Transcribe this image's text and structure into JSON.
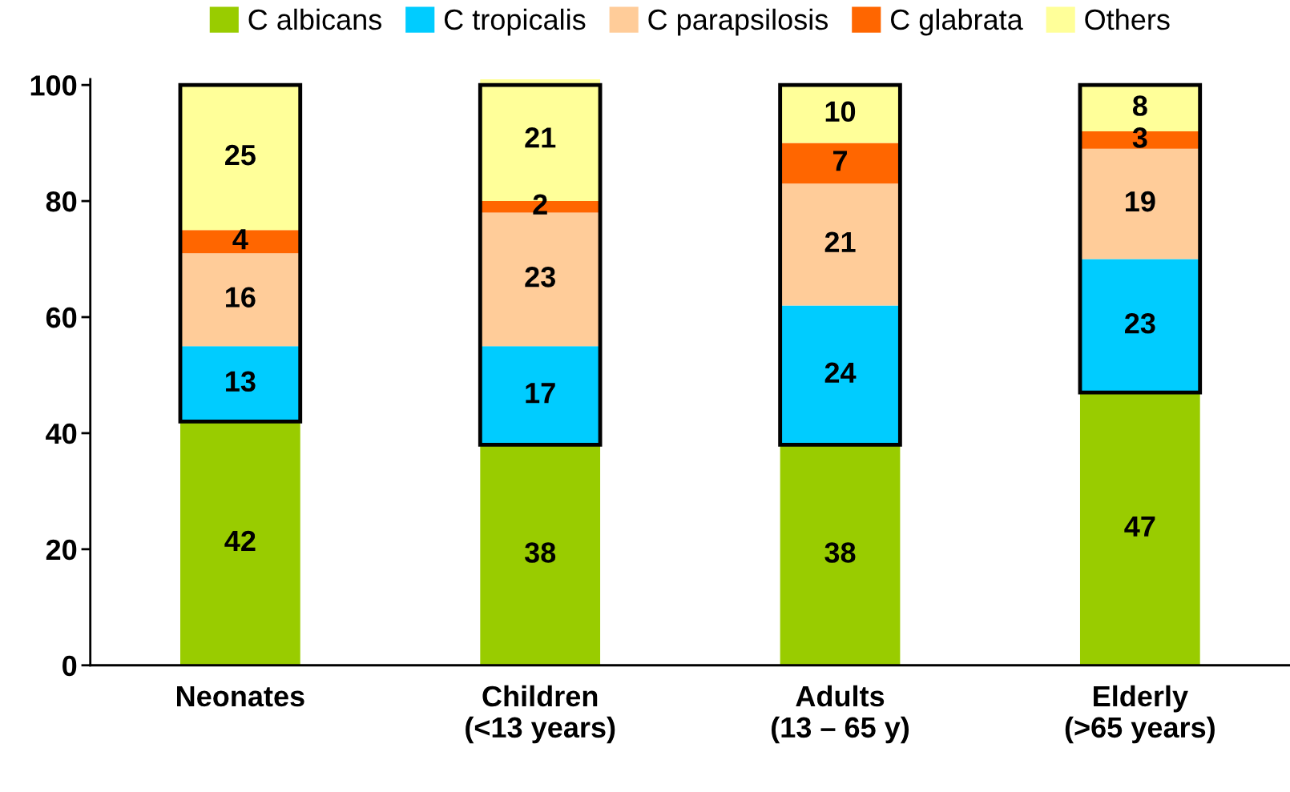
{
  "chart_data": {
    "type": "bar",
    "stacked": true,
    "data_labels": true,
    "legend": "top",
    "grid": false,
    "categories": [
      "Neonates",
      "Children\n(<13 years)",
      "Adults\n(13 – 65 y)",
      "Elderly\n(>65 years)"
    ],
    "ylim": [
      0,
      101
    ],
    "yticks": [
      0,
      20,
      40,
      60,
      80,
      100
    ],
    "series": [
      {
        "name": "C albicans",
        "color": "#99cc00",
        "values": [
          42,
          38,
          38,
          47
        ]
      },
      {
        "name": "C tropicalis",
        "color": "#00ccff",
        "values": [
          13,
          17,
          24,
          23
        ]
      },
      {
        "name": "C parapsilosis",
        "color": "#ffcc99",
        "values": [
          16,
          23,
          21,
          19
        ]
      },
      {
        "name": "C glabrata",
        "color": "#ff6600",
        "values": [
          4,
          2,
          7,
          3
        ]
      },
      {
        "name": "Others",
        "color": "#ffff99",
        "values": [
          25,
          21,
          10,
          8
        ]
      }
    ]
  }
}
